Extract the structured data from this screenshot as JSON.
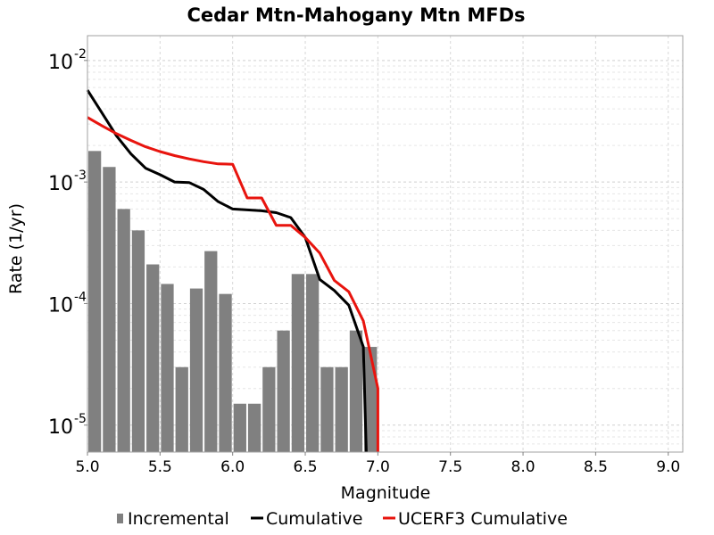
{
  "chart_data": {
    "type": "bar",
    "title": "Cedar Mtn-Mahogany Mtn MFDs",
    "xlabel": "Magnitude",
    "ylabel": "Rate (1/yr)",
    "xlim": [
      5.0,
      9.1
    ],
    "ylim": [
      6e-06,
      0.016
    ],
    "yscale": "log",
    "grid": true,
    "legend_position": "bottom",
    "x_ticks": [
      "5.0",
      "5.5",
      "6.0",
      "6.5",
      "7.0",
      "7.5",
      "8.0",
      "8.5",
      "9.0"
    ],
    "y_ticks": [
      {
        "base": "10",
        "exp": "-5",
        "value": 1e-05
      },
      {
        "base": "10",
        "exp": "-4",
        "value": 0.0001
      },
      {
        "base": "10",
        "exp": "-3",
        "value": 0.001
      },
      {
        "base": "10",
        "exp": "-2",
        "value": 0.01
      }
    ],
    "series": [
      {
        "name": "Incremental",
        "kind": "bar",
        "color": "#808080",
        "bin_width": 0.1,
        "x": [
          5.05,
          5.15,
          5.25,
          5.35,
          5.45,
          5.55,
          5.65,
          5.75,
          5.85,
          5.95,
          6.05,
          6.15,
          6.25,
          6.35,
          6.45,
          6.55,
          6.65,
          6.75,
          6.85,
          6.95
        ],
        "values": [
          0.0018,
          0.00133,
          0.0006,
          0.0004,
          0.00021,
          0.000145,
          3e-05,
          0.000133,
          0.00027,
          0.00012,
          1.5e-05,
          1.5e-05,
          3e-05,
          6e-05,
          0.000175,
          0.000175,
          3e-05,
          3e-05,
          6e-05,
          4.4e-05
        ]
      },
      {
        "name": "Cumulative",
        "kind": "line",
        "color": "#000000",
        "x": [
          5.0,
          5.1,
          5.2,
          5.3,
          5.4,
          5.5,
          5.6,
          5.7,
          5.8,
          5.9,
          6.0,
          6.1,
          6.2,
          6.3,
          6.4,
          6.5,
          6.6,
          6.7,
          6.8,
          6.9,
          6.92
        ],
        "values": [
          0.0057,
          0.0037,
          0.0024,
          0.0017,
          0.0013,
          0.00115,
          0.001,
          0.00099,
          0.00087,
          0.00069,
          0.0006,
          0.00059,
          0.00058,
          0.00056,
          0.00051,
          0.00035,
          0.000158,
          0.000128,
          9.7e-05,
          4.4e-05,
          6e-06
        ]
      },
      {
        "name": "UCERF3 Cumulative",
        "kind": "line",
        "color": "#e8140e",
        "x": [
          5.0,
          5.1,
          5.2,
          5.3,
          5.4,
          5.5,
          5.6,
          5.7,
          5.8,
          5.9,
          6.0,
          6.1,
          6.2,
          6.3,
          6.4,
          6.5,
          6.6,
          6.7,
          6.8,
          6.9,
          7.0,
          7.0
        ],
        "values": [
          0.0034,
          0.0029,
          0.0025,
          0.0022,
          0.00195,
          0.00178,
          0.00165,
          0.00155,
          0.00147,
          0.00141,
          0.0014,
          0.00074,
          0.00074,
          0.00044,
          0.00044,
          0.00035,
          0.00026,
          0.000155,
          0.000125,
          7.2e-05,
          2e-05,
          6e-06
        ]
      }
    ]
  }
}
